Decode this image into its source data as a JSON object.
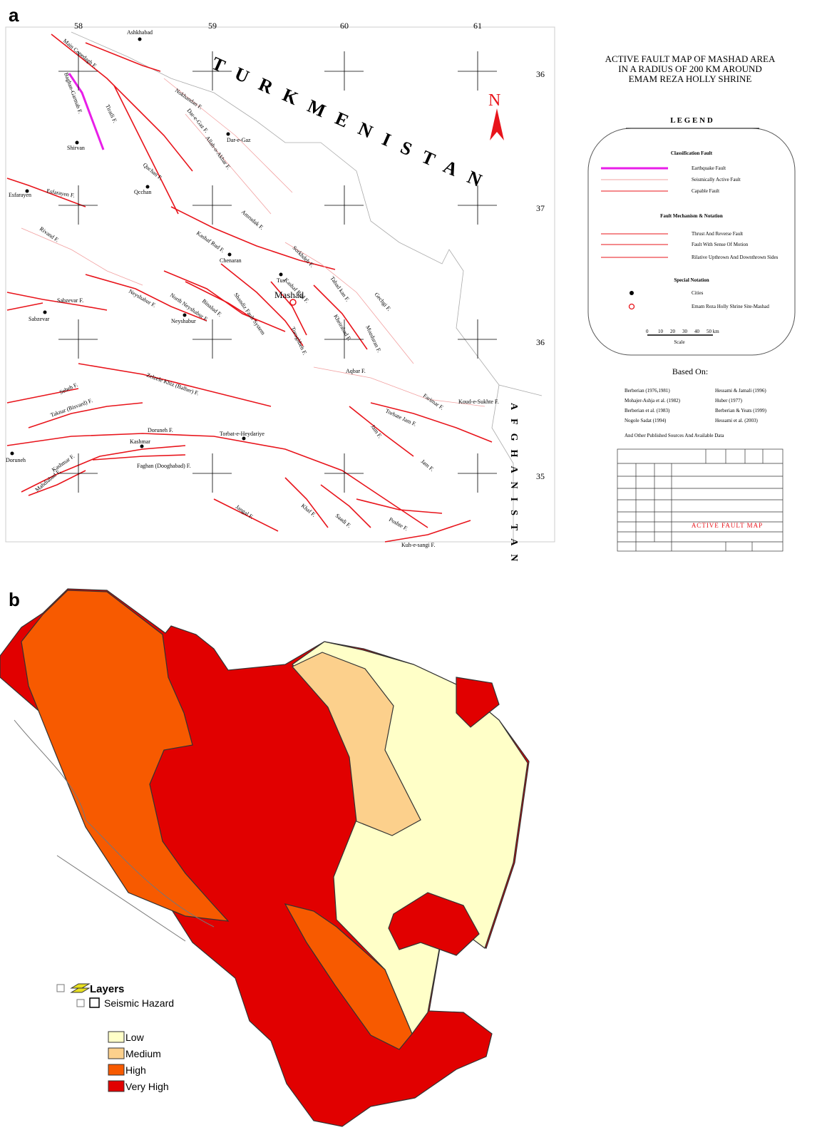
{
  "panel_a": {
    "label": "a",
    "longitude_labels": [
      "58",
      "59",
      "60",
      "61"
    ],
    "latitude_labels": [
      "36",
      "37",
      "36",
      "35"
    ],
    "countries": [
      "TURKMENISTAN",
      "AFGHANISTAN"
    ],
    "north": "N",
    "cities": [
      "Ashkhabad",
      "Dar-e-Gaz",
      "Shirvan",
      "Qcchan",
      "Esfarayen",
      "Chenaran",
      "Tus",
      "Mashad",
      "Sabzevar",
      "Neyshabur",
      "Torbat-e-Heydariye",
      "Kashmar",
      "Doruneh"
    ],
    "faults": [
      "Main Copedagh F.",
      "Baghan-Garmab F.",
      "Tiratli F.",
      "Nokhandan F.",
      "Dar-e-Gaz F.",
      "Allah-o-Akbar F.",
      "Quchan F.",
      "Esfarayen F.",
      "Amrudak F.",
      "Rivand F.",
      "Kashaf Rud F.",
      "Kashaf Rud F.",
      "Sorkhdeh F.",
      "Tabad kan F.",
      "Gechgi F.",
      "Kheirabad F.",
      "Mozduran F.",
      "Sabzevar F.",
      "Neyshabur F.",
      "North Neyshabur F.",
      "Binalud F.",
      "Shandiz Fault System",
      "Toroghbeh F.",
      "Zelzele Khiz (Balher) F.",
      "Aqbar F.",
      "Farimar F.",
      "Koud-e-Sukhte F.",
      "Sebeh F.",
      "Torbate Jam F.",
      "Taknar (Bisvard) F.",
      "Jam F.",
      "Doruneh F.",
      "Faghan (Dooghabad)  F.",
      "Jam F.",
      "Kashmar F.",
      "Mahdiabad F.",
      "Jangal F.",
      "Khaf F.",
      "Saadi F.",
      "Poshte F.",
      "Kuh-e-sangi F."
    ],
    "title": [
      "ACTIVE FAULT MAP OF MASHAD AREA",
      "IN A RADIUS OF  200 KM AROUND",
      "EMAM REZA HOLLY SHRINE"
    ],
    "legend": {
      "title": "L E G E N D",
      "sections": [
        {
          "heading": "Classification Fault",
          "items": [
            "Earthquake Fault",
            "Seismically Active  Fault",
            "Capable Fault"
          ]
        },
        {
          "heading": "Fault Mechanism & Notation",
          "items": [
            "Thrust And Reverse Fault",
            "Fault With Sense Of Motion",
            "Rilative Upthrown And  Downthrown Sides"
          ]
        },
        {
          "heading": "Special Notation",
          "items": [
            "Cities",
            "Emam Reza Holly Shrine Site-Mashad"
          ]
        }
      ],
      "scale_ticks": [
        "0",
        "10",
        "20",
        "30",
        "40",
        "50 km"
      ],
      "scale_label": "Scale"
    },
    "based_on": {
      "title": "Based On:",
      "refs": [
        "Berberian (1976,1981)",
        "Hessami & Jamali (1996)",
        "Mohajer-Ashja et al. (1982)",
        "Huber (1977)",
        "Berberian et al. (1983)",
        "Berberian & Yeats (1999)",
        "Nogole Sadat (1994)",
        "Hessami et al. (2003)"
      ],
      "note": "And Other Published Sources And Available Data"
    },
    "title_block": "ACTIVE FAULT MAP"
  },
  "panel_b": {
    "label": "b",
    "layers": "Layers",
    "layer": "Seismic Hazard",
    "classes": [
      {
        "label": "Low",
        "color": "#ffffc8"
      },
      {
        "label": "Medium",
        "color": "#fcd08c"
      },
      {
        "label": "High",
        "color": "#f75a00"
      },
      {
        "label": "Very High",
        "color": "#e10000"
      }
    ]
  }
}
